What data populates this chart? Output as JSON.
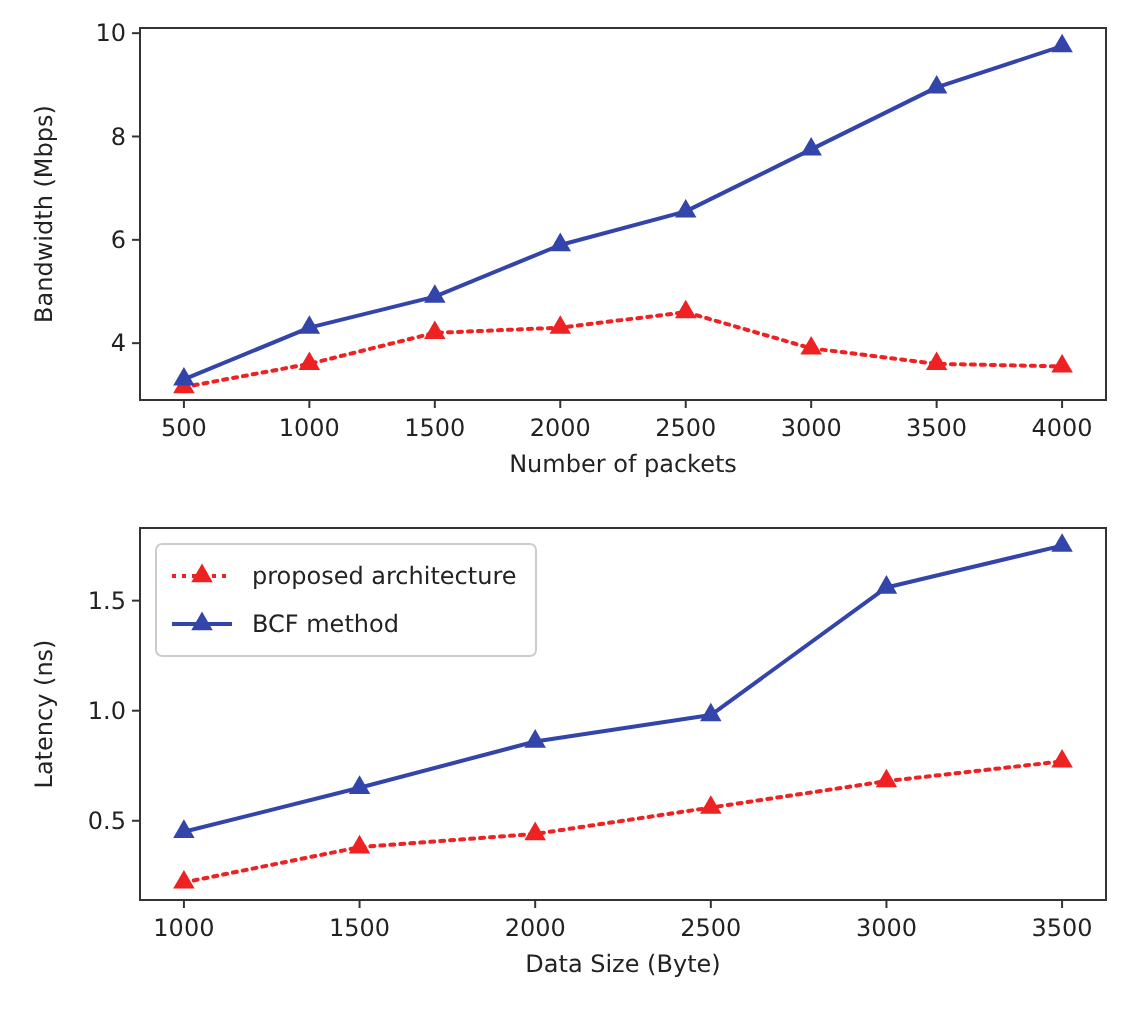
{
  "chart_data": [
    {
      "type": "line",
      "xlabel": "Number of packets",
      "ylabel": "Bandwidth (Mbps)",
      "x": [
        500,
        1000,
        1500,
        2000,
        2500,
        3000,
        3500,
        4000
      ],
      "xlim": [
        325,
        4175
      ],
      "xticks": [
        500,
        1000,
        1500,
        2000,
        2500,
        3000,
        3500,
        4000
      ],
      "ylim": [
        2.9,
        10.1
      ],
      "yticks": [
        4,
        6,
        8,
        10
      ],
      "marker": "triangle",
      "legend": false,
      "grid": false,
      "series": [
        {
          "color": "#ee2222",
          "line_style": "dotted",
          "values": [
            3.15,
            3.6,
            4.2,
            4.3,
            4.6,
            3.9,
            3.6,
            3.55
          ]
        },
        {
          "color": "#3344aa",
          "line_style": "solid",
          "values": [
            3.3,
            4.3,
            4.9,
            5.9,
            6.55,
            7.75,
            8.95,
            9.75
          ]
        }
      ]
    },
    {
      "type": "line",
      "xlabel": "Data Size (Byte)",
      "ylabel": "Latency (ns)",
      "x": [
        1000,
        1500,
        2000,
        2500,
        3000,
        3500
      ],
      "xlim": [
        875,
        3625
      ],
      "xticks": [
        1000,
        1500,
        2000,
        2500,
        3000,
        3500
      ],
      "ylim": [
        0.14,
        1.83
      ],
      "yticks": [
        {
          "value": 0.5,
          "label": "0.5"
        },
        {
          "value": 1,
          "label": "1.0"
        },
        {
          "value": 1.5,
          "label": "1.5"
        }
      ],
      "marker": "triangle",
      "legend": "top left",
      "grid": false,
      "series": [
        {
          "name": "proposed architecture",
          "color": "#ee2222",
          "line_style": "dotted",
          "values": [
            0.22,
            0.38,
            0.44,
            0.56,
            0.68,
            0.77
          ]
        },
        {
          "name": "BCF method",
          "color": "#3344aa",
          "line_style": "solid",
          "values": [
            0.45,
            0.65,
            0.86,
            0.98,
            1.56,
            1.75
          ]
        }
      ]
    }
  ]
}
